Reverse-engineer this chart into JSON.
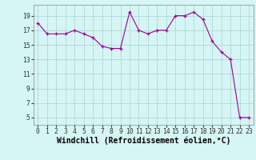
{
  "x": [
    0,
    1,
    2,
    3,
    4,
    5,
    6,
    7,
    8,
    9,
    10,
    11,
    12,
    13,
    14,
    15,
    16,
    17,
    18,
    19,
    20,
    21,
    22,
    23
  ],
  "y": [
    18.0,
    16.5,
    16.5,
    16.5,
    17.0,
    16.5,
    16.0,
    14.8,
    14.5,
    14.5,
    19.5,
    17.0,
    16.5,
    17.0,
    17.0,
    19.0,
    19.0,
    19.5,
    18.5,
    15.5,
    14.0,
    13.0,
    5.0,
    5.0
  ],
  "xlabel": "Windchill (Refroidissement éolien,°C)",
  "xlim": [
    -0.5,
    23.5
  ],
  "ylim": [
    4,
    20.5
  ],
  "yticks": [
    5,
    7,
    9,
    11,
    13,
    15,
    17,
    19
  ],
  "xticks": [
    0,
    1,
    2,
    3,
    4,
    5,
    6,
    7,
    8,
    9,
    10,
    11,
    12,
    13,
    14,
    15,
    16,
    17,
    18,
    19,
    20,
    21,
    22,
    23
  ],
  "line_color": "#990099",
  "marker": "+",
  "bg_color": "#d6f5f5",
  "grid_color": "#b0d8d8",
  "tick_label_fontsize": 5.8,
  "xlabel_fontsize": 7.0
}
